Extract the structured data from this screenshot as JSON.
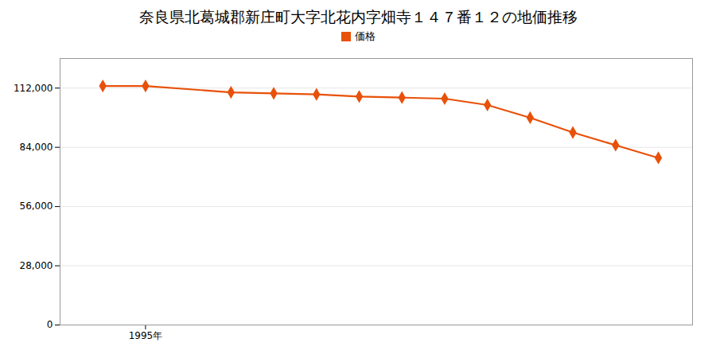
{
  "chart_data": {
    "type": "line",
    "title": "奈良県北葛城郡新庄町大字北花内字畑寺１４７番１２の地価推移",
    "x": [
      1994,
      1995,
      1997,
      1998,
      1999,
      2000,
      2001,
      2002,
      2003,
      2004,
      2005,
      2006,
      2007
    ],
    "series": [
      {
        "name": "価格",
        "color": "#E8510A",
        "marker": "diamond",
        "values": [
          113000,
          113000,
          110000,
          109500,
          109000,
          108000,
          107500,
          107000,
          104000,
          98000,
          91000,
          85000,
          79000
        ]
      }
    ],
    "xlim": [
      1993.0,
      2007.8
    ],
    "xticks": [
      {
        "value": 1995,
        "label": "1995年"
      }
    ],
    "ylim": [
      0,
      126000
    ],
    "yticks": [
      0,
      {
        "value": 28000,
        "label": "28,000"
      },
      {
        "value": 56000,
        "label": "56,000"
      },
      {
        "value": 84000,
        "label": "84,000"
      },
      {
        "value": 112000,
        "label": "112,000"
      }
    ],
    "grid": "y",
    "legend": "top"
  }
}
